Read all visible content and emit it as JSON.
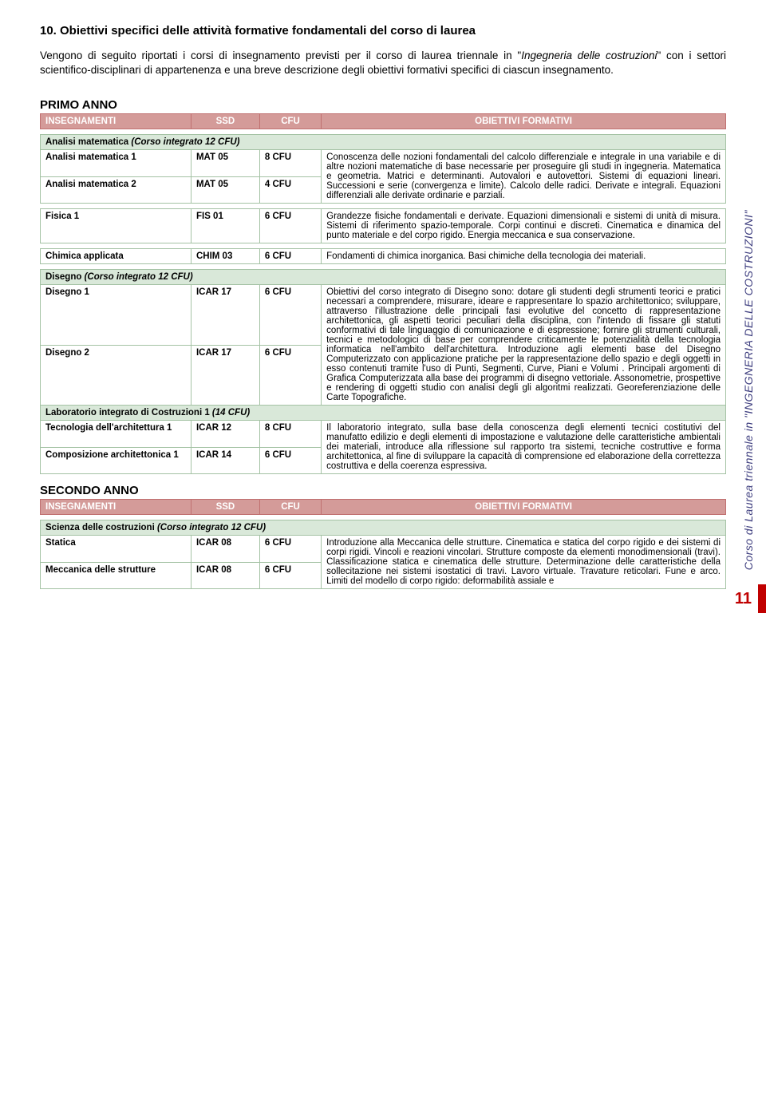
{
  "heading": "10. Obiettivi specifici delle attività formative fondamentali del corso di laurea",
  "intro_pre": "Vengono di seguito riportati i corsi di insegnamento previsti per il corso di laurea triennale in \"",
  "intro_ital": "Ingegneria delle costruzioni",
  "intro_post": "\" con i settori scientifico-disciplinari di appartenenza e una breve descrizione degli obiettivi formativi specifici di ciascun insegnamento.",
  "year1": "PRIMO ANNO",
  "year2": "SECONDO ANNO",
  "hdr": {
    "c1": "INSEGNAMENTI",
    "c2": "SSD",
    "c3": "CFU",
    "c4": "OBIETTIVI FORMATIVI"
  },
  "g_analisi": "Analisi matematica",
  "g_analisi_suffix": " (Corso integrato 12 CFU)",
  "analisi1_name": "Analisi matematica 1",
  "analisi1_ssd": "MAT 05",
  "analisi1_cfu": "8 CFU",
  "analisi2_name": "Analisi matematica 2",
  "analisi2_ssd": "MAT 05",
  "analisi2_cfu": "4 CFU",
  "analisi_obj": "Conoscenza delle nozioni fondamentali del calcolo differenziale e integrale in una variabile e di altre nozioni matematiche di base necessarie per proseguire gli studi in ingegneria. Matematica e geometria. Matrici e determinanti. Autovalori e autovettori. Sistemi di equazioni lineari. Successioni e serie (convergenza e limite). Calcolo delle radici. Derivate e integrali. Equazioni differenziali alle derivate ordinarie e parziali.",
  "fisica_name": "Fisica 1",
  "fisica_ssd": "FIS 01",
  "fisica_cfu": "6 CFU",
  "fisica_obj": "Grandezze fisiche fondamentali e derivate. Equazioni dimensionali e sistemi di unità di misura. Sistemi di riferimento spazio-temporale. Corpi continui e discreti. Cinematica e dinamica del punto materiale e del corpo rigido. Energia meccanica e sua conservazione.",
  "chimica_name": "Chimica applicata",
  "chimica_ssd": "CHIM 03",
  "chimica_cfu": "6 CFU",
  "chimica_obj": "Fondamenti di chimica inorganica. Basi chimiche della tecnologia dei materiali.",
  "g_disegno": "Disegno",
  "g_disegno_suffix": " (Corso integrato 12 CFU)",
  "dis1_name": "Disegno 1",
  "dis1_ssd": "ICAR 17",
  "dis1_cfu": "6 CFU",
  "dis2_name": "Disegno 2",
  "dis2_ssd": "ICAR 17",
  "dis2_cfu": "6 CFU",
  "dis_obj": "Obiettivi del corso integrato di Disegno sono: dotare gli studenti degli strumenti teorici e pratici necessari a comprendere, misurare, ideare e rappresentare lo spazio architettonico; sviluppare, attraverso l'illustrazione delle principali fasi evolutive del concetto di rappresentazione architettonica, gli aspetti teorici peculiari della disciplina, con l'intendo di fissare gli statuti conformativi di tale linguaggio di comunicazione e di espressione; fornire gli strumenti culturali, tecnici e metodologici di base per comprendere criticamente le potenzialità della tecnologia informatica nell'ambito dell'architettura. Introduzione agli elementi base del Disegno Computerizzato con applicazione pratiche per la rappresentazione dello spazio e degli oggetti in esso contenuti tramite l'uso di Punti, Segmenti, Curve, Piani e Volumi . Principali argomenti di Grafica Computerizzata alla base dei programmi di disegno vettoriale. Assonometrie, prospettive e rendering di oggetti studio con analisi degli gli algoritmi realizzati. Georeferenziazione delle Carte Topografiche.",
  "g_lab": "Laboratorio integrato di Costruzioni 1",
  "g_lab_suffix": " (14 CFU)",
  "lab1_name": "Tecnologia dell'architettura 1",
  "lab1_ssd": "ICAR 12",
  "lab1_cfu": "8 CFU",
  "lab2_name": "Composizione architettonica 1",
  "lab2_ssd": "ICAR 14",
  "lab2_cfu": "6 CFU",
  "lab_obj": "Il laboratorio integrato, sulla base della conoscenza degli elementi tecnici costitutivi del manufatto edilizio e degli elementi di impostazione e valutazione delle caratteristiche ambientali dei materiali, introduce alla riflessione sul rapporto tra sistemi, tecniche costruttive e forma architettonica, al fine di sviluppare la capacità di comprensione ed elaborazione della correttezza costruttiva e della coerenza espressiva.",
  "g_scienza": "Scienza delle costruzioni",
  "g_scienza_suffix": " (Corso integrato 12 CFU)",
  "sc1_name": "Statica",
  "sc1_ssd": "ICAR 08",
  "sc1_cfu": "6 CFU",
  "sc2_name": "Meccanica delle strutture",
  "sc2_ssd": "ICAR 08",
  "sc2_cfu": "6 CFU",
  "sc_obj": "Introduzione alla Meccanica delle strutture. Cinematica e statica del corpo rigido e dei sistemi di corpi rigidi. Vincoli e reazioni vincolari. Strutture composte da elementi monodimensionali (travi). Classificazione statica e cinematica delle strutture. Determinazione delle caratteristiche della sollecitazione nei sistemi isostatici di travi. Lavoro virtuale. Travature reticolari. Fune e arco. Limiti del modello di corpo rigido: deformabilità assiale e",
  "side_text": "Corso di Laurea triennale in \"INGEGNERIA DELLE COSTRUZIONI\"",
  "page_num": "11"
}
